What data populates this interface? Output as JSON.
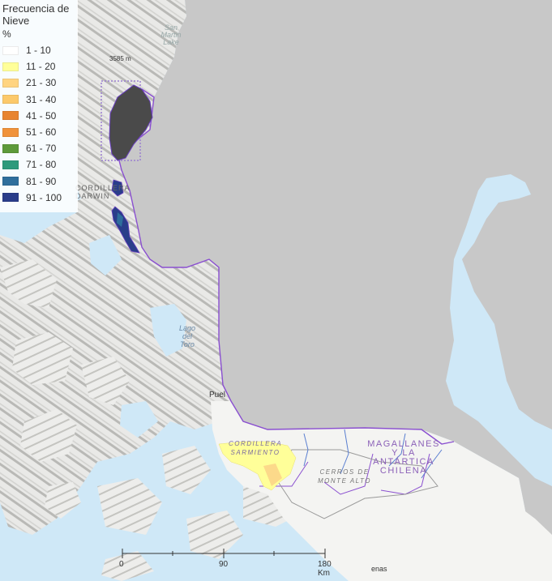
{
  "legend": {
    "title": "Frecuencia de Nieve",
    "unit": "%",
    "classes": [
      {
        "label": "1 - 10",
        "color": "#ffffff"
      },
      {
        "label": "11 - 20",
        "color": "#ffff99"
      },
      {
        "label": "21 - 30",
        "color": "#ffd480"
      },
      {
        "label": "31 - 40",
        "color": "#fcc96a"
      },
      {
        "label": "41 - 50",
        "color": "#e8842f"
      },
      {
        "label": "51 - 60",
        "color": "#f0923a"
      },
      {
        "label": "61 - 70",
        "color": "#5e9a3a"
      },
      {
        "label": "71 - 80",
        "color": "#2e9a7c"
      },
      {
        "label": "81 - 90",
        "color": "#2f6e9c"
      },
      {
        "label": "91 - 100",
        "color": "#2a3d8a"
      }
    ]
  },
  "map_labels": {
    "san_martin_lake": "San Martin Lake",
    "elevation": "3585 m",
    "cordillera_darwin": "CORDILLERA DARWIN",
    "lago_del_toro": "Lago del Toro",
    "puerto": "Puel",
    "cordillera_sarmiento": "CORDILLERA SARMIENTO",
    "cerros_monte_alto": "CERROS DE MONTE ALTO",
    "region": "MAGALLANES Y LA ANTÁRTICA CHILENA",
    "bottom_place": "enas"
  },
  "scale_bar": {
    "ticks": [
      "0",
      "90",
      "180 Km"
    ]
  },
  "colors": {
    "water": "#cfe8f7",
    "argentina_gray": "#c8c8c8",
    "land": "#f4f4f2",
    "boundary_purple": "#8a4fd0",
    "dark_glacier": "#4a4a4a"
  }
}
